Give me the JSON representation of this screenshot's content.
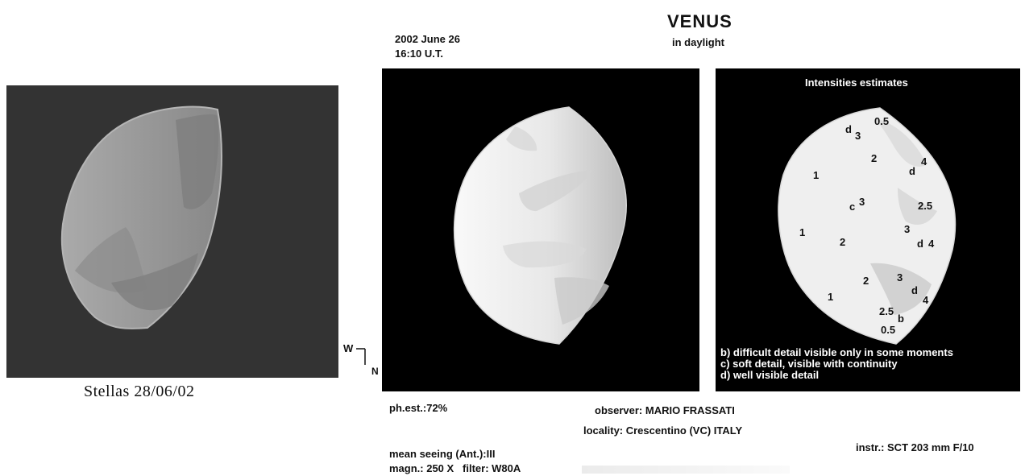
{
  "left_panel": {
    "caption": "Stellas 28/06/02"
  },
  "header": {
    "title": "VENUS",
    "subtitle": "in daylight",
    "date": "2002 June 26",
    "time": "16:10 U.T."
  },
  "orientation": {
    "west": "W",
    "north": "N"
  },
  "right_panel": {
    "title": "Intensities estimates",
    "marks": [
      "d",
      "3",
      "0.5",
      "2",
      "d",
      "4",
      "1",
      "c",
      "3",
      "2.5",
      "1",
      "2",
      "3",
      "d",
      "4",
      "2",
      "3",
      "d",
      "4",
      "1",
      "2.5",
      "b",
      "0.5"
    ],
    "legend": [
      "b) difficult detail visible only in some moments",
      "c) soft detail, visible with continuity",
      "d) well visible detail"
    ]
  },
  "footer": {
    "phase": "ph.est.:72%",
    "observer": "observer: MARIO FRASSATI",
    "locality": "locality: Crescentino (VC) ITALY",
    "seeing": "mean seeing (Ant.):III",
    "magnification": "magn.: 250 X   filter: W80A",
    "instrument": "instr.: SCT 203 mm F/10"
  }
}
